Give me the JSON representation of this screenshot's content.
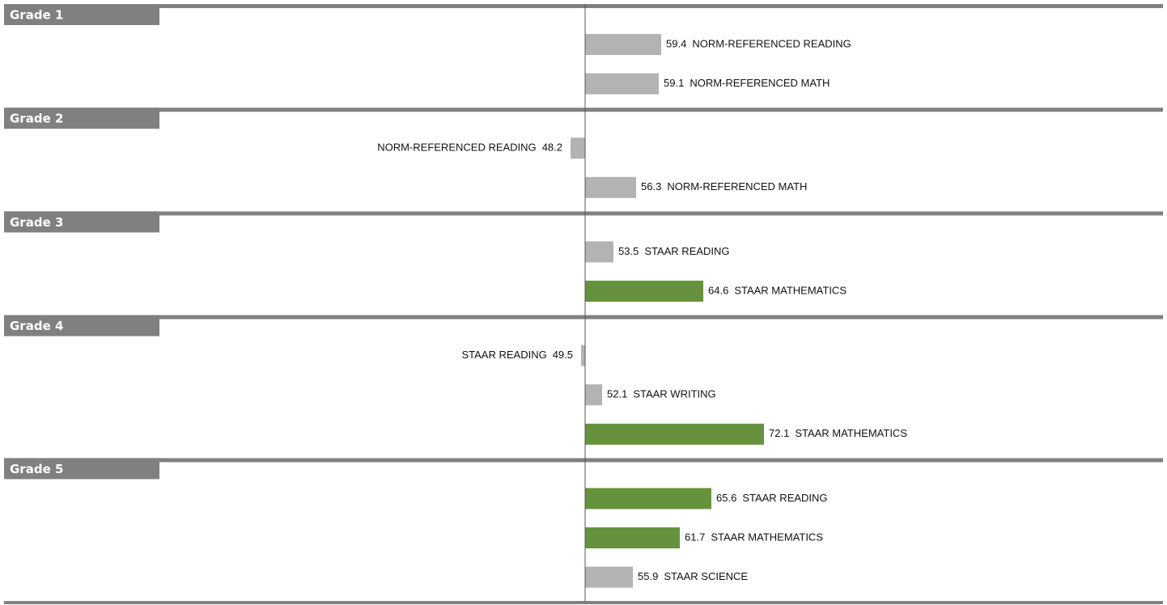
{
  "chart_data": {
    "type": "diverging-bar",
    "xlim": [
      -22.3,
      121.9
    ],
    "baseline": 50,
    "groups": [
      {
        "title": "Grade 1",
        "items": [
          {
            "label": "NORM-REFERENCED READING",
            "value": 59.4,
            "color": "#b3b3b3"
          },
          {
            "label": "NORM-REFERENCED MATH",
            "value": 59.1,
            "color": "#b3b3b3"
          }
        ]
      },
      {
        "title": "Grade 2",
        "items": [
          {
            "label": "NORM-REFERENCED READING",
            "value": 48.2,
            "color": "#b3b3b3"
          },
          {
            "label": "NORM-REFERENCED MATH",
            "value": 56.3,
            "color": "#b3b3b3"
          }
        ]
      },
      {
        "title": "Grade 3",
        "items": [
          {
            "label": "STAAR READING",
            "value": 53.5,
            "color": "#b3b3b3"
          },
          {
            "label": "STAAR MATHEMATICS",
            "value": 64.6,
            "color": "#66923d"
          }
        ]
      },
      {
        "title": "Grade 4",
        "items": [
          {
            "label": "STAAR READING",
            "value": 49.5,
            "color": "#b3b3b3"
          },
          {
            "label": "STAAR WRITING",
            "value": 52.1,
            "color": "#b3b3b3"
          },
          {
            "label": "STAAR MATHEMATICS",
            "value": 72.1,
            "color": "#66923d"
          }
        ]
      },
      {
        "title": "Grade 5",
        "items": [
          {
            "label": "STAAR READING",
            "value": 65.6,
            "color": "#66923d"
          },
          {
            "label": "STAAR MATHEMATICS",
            "value": 61.7,
            "color": "#66923d"
          },
          {
            "label": "STAAR SCIENCE",
            "value": 55.9,
            "color": "#b3b3b3"
          }
        ]
      }
    ]
  }
}
